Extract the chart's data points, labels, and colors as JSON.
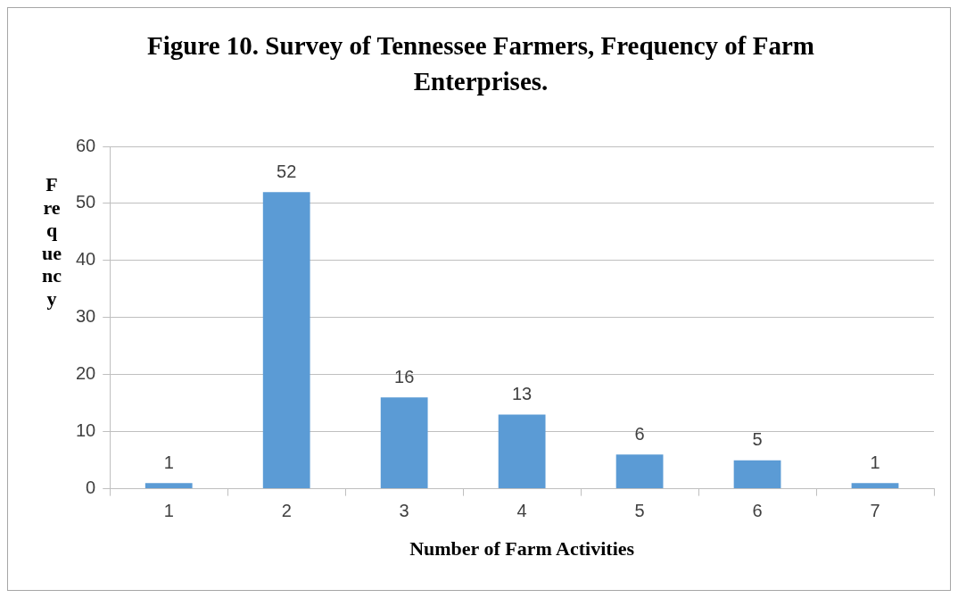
{
  "chart_data": {
    "type": "bar",
    "title": "Figure 10.  Survey of Tennessee Farmers, Frequency of Farm Enterprises.",
    "xlabel": "Number of Farm Activities",
    "ylabel": "Frequency",
    "categories": [
      "1",
      "2",
      "3",
      "4",
      "5",
      "6",
      "7"
    ],
    "values": [
      1,
      52,
      16,
      13,
      6,
      5,
      1
    ],
    "color": "#5b9bd5",
    "ylim": [
      0,
      60
    ],
    "yticks": [
      0,
      10,
      20,
      30,
      40,
      50,
      60
    ],
    "grid": "y",
    "data_labels": true
  }
}
